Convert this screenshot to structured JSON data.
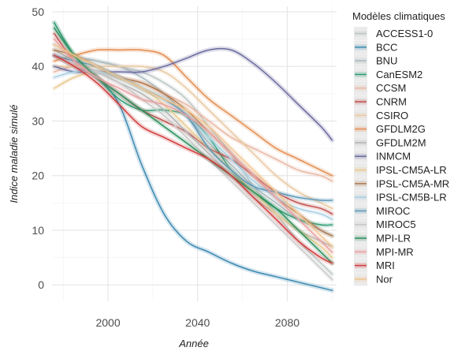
{
  "chart_data": {
    "type": "line",
    "title": "",
    "xlabel": "Année",
    "ylabel": "Indice maladie simulé",
    "xlim": [
      1975,
      2102
    ],
    "ylim": [
      -3,
      51
    ],
    "x_ticks": [
      2000,
      2040,
      2080
    ],
    "y_ticks": [
      0,
      10,
      20,
      30,
      40,
      50
    ],
    "grid": true,
    "legend_title": "Modèles climatiques",
    "legend_position": "right",
    "x": [
      1976,
      1985,
      1995,
      2005,
      2015,
      2025,
      2035,
      2045,
      2055,
      2065,
      2075,
      2085,
      2095,
      2100
    ],
    "series": [
      {
        "name": "ACCESS1-0",
        "color": "#b9c5c3",
        "values": [
          48,
          42,
          41,
          40,
          39,
          37,
          34,
          29,
          24,
          18,
          13,
          8,
          4,
          2
        ]
      },
      {
        "name": "BCC",
        "color": "#3c8ab0",
        "values": [
          42,
          40,
          38,
          33,
          22,
          13,
          8,
          6,
          4,
          2.5,
          1.5,
          0.5,
          -0.5,
          -1
        ]
      },
      {
        "name": "BNU",
        "color": "#a9b8bc",
        "values": [
          44,
          42,
          41,
          40,
          38,
          35,
          31,
          26,
          22,
          18,
          15,
          12,
          10,
          9
        ]
      },
      {
        "name": "CanESM2",
        "color": "#2f9c72",
        "values": [
          48,
          42,
          38,
          34,
          32,
          32,
          31,
          27,
          21,
          17,
          14,
          12,
          11,
          11
        ]
      },
      {
        "name": "CCSM",
        "color": "#e9b8a2",
        "values": [
          39,
          40,
          39,
          38,
          37,
          35,
          33,
          30,
          27,
          25,
          23,
          21,
          20,
          19
        ]
      },
      {
        "name": "CNRM",
        "color": "#c0504d",
        "values": [
          46,
          41,
          38,
          35,
          32,
          30,
          28,
          25,
          23,
          20,
          17,
          15,
          14,
          13
        ]
      },
      {
        "name": "CSIRO",
        "color": "#e9c9a1",
        "values": [
          40,
          40,
          40,
          40,
          40,
          39,
          36,
          32,
          28,
          24,
          20,
          17,
          15,
          14
        ]
      },
      {
        "name": "GFDLM2G",
        "color": "#e48b4e",
        "values": [
          41,
          42,
          43,
          43,
          43,
          42,
          38,
          34,
          31,
          28,
          25,
          23,
          21,
          20
        ]
      },
      {
        "name": "GFDLM2M",
        "color": "#b3b3b3",
        "values": [
          43,
          41,
          39,
          37,
          35,
          32,
          28,
          24,
          20,
          16,
          13,
          10,
          8,
          7
        ]
      },
      {
        "name": "INMCM",
        "color": "#6a6a9e",
        "values": [
          40,
          39,
          39,
          39,
          39,
          40,
          41.5,
          43,
          43,
          40.5,
          37,
          33,
          29,
          26.5
        ]
      },
      {
        "name": "IPSL-CM5A-LR",
        "color": "#e9c98c",
        "values": [
          36,
          38,
          39,
          38,
          36,
          33,
          29,
          25,
          21,
          17,
          13,
          10,
          7,
          5
        ]
      },
      {
        "name": "IPSL-CM5A-MR",
        "color": "#b07c52",
        "values": [
          43,
          42,
          40,
          38,
          37,
          35,
          32,
          28,
          24,
          20,
          16,
          13,
          10,
          9
        ]
      },
      {
        "name": "IPSL-CM5B-LR",
        "color": "#a6cfe2",
        "values": [
          38,
          39,
          39,
          38,
          36,
          34,
          31,
          27,
          23,
          19,
          16,
          14,
          13,
          12
        ]
      },
      {
        "name": "MIROC",
        "color": "#5a98b8",
        "values": [
          42,
          41,
          40,
          38,
          36,
          34,
          31,
          25,
          21,
          18,
          17,
          16,
          15.5,
          15.5
        ]
      },
      {
        "name": "MIROC5",
        "color": "#c7c7c7",
        "values": [
          42,
          40,
          39,
          37,
          34,
          31,
          27,
          23,
          19,
          15,
          11,
          7,
          3,
          1
        ]
      },
      {
        "name": "MPI-LR",
        "color": "#2a8f5c",
        "values": [
          47,
          42,
          38,
          35,
          32,
          29,
          26,
          23,
          20,
          17,
          14,
          10,
          6,
          4
        ]
      },
      {
        "name": "MPI-MR",
        "color": "#e8a0a0",
        "values": [
          45,
          41,
          38,
          36,
          34,
          33,
          31,
          28,
          24,
          20,
          16,
          12,
          8,
          6
        ]
      },
      {
        "name": "MRI",
        "color": "#d13b3b",
        "values": [
          42,
          40,
          37,
          33,
          29,
          27,
          25,
          23,
          20,
          16,
          12,
          8,
          5,
          4
        ]
      },
      {
        "name": "Nor",
        "color": "#f2c48c",
        "values": [
          44,
          42,
          40,
          38,
          36,
          34,
          32,
          29,
          25,
          21,
          17,
          13,
          9,
          7
        ]
      }
    ]
  }
}
